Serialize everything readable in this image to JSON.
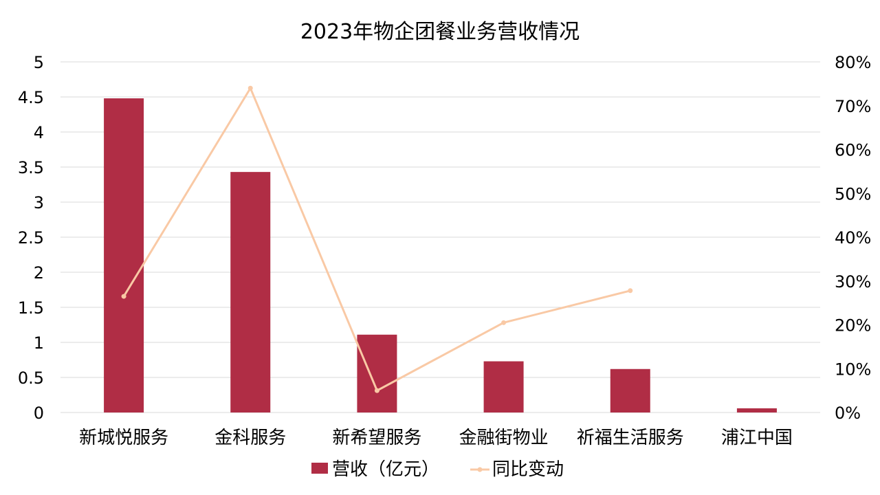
{
  "chart_data": {
    "type": "bar",
    "title": "2023年物企团餐业务营收情况",
    "categories": [
      "新城悦服务",
      "金科服务",
      "新希望服务",
      "金融街物业",
      "祈福生活服务",
      "浦江中国"
    ],
    "series": [
      {
        "name": "营收（亿元）",
        "type": "bar",
        "axis": "left",
        "color": "#b02d45",
        "values": [
          4.48,
          3.43,
          1.11,
          0.73,
          0.62,
          0.06
        ]
      },
      {
        "name": "同比变动",
        "type": "line",
        "axis": "right",
        "color": "#f9c9a5",
        "values": [
          26.5,
          74.0,
          5.0,
          20.5,
          27.8,
          null
        ]
      }
    ],
    "y_left": {
      "range": [
        0,
        5
      ],
      "ticks": [
        0,
        0.5,
        1,
        1.5,
        2,
        2.5,
        3,
        3.5,
        4,
        4.5,
        5
      ],
      "tick_labels": [
        "0",
        "0.5",
        "1",
        "1.5",
        "2",
        "2.5",
        "3",
        "3.5",
        "4",
        "4.5",
        "5"
      ]
    },
    "y_right": {
      "range": [
        0,
        80
      ],
      "ticks": [
        0,
        10,
        20,
        30,
        40,
        50,
        60,
        70,
        80
      ],
      "tick_labels": [
        "0%",
        "10%",
        "20%",
        "30%",
        "40%",
        "50%",
        "60%",
        "70%",
        "80%"
      ]
    },
    "grid": true,
    "legend": "bottom"
  }
}
